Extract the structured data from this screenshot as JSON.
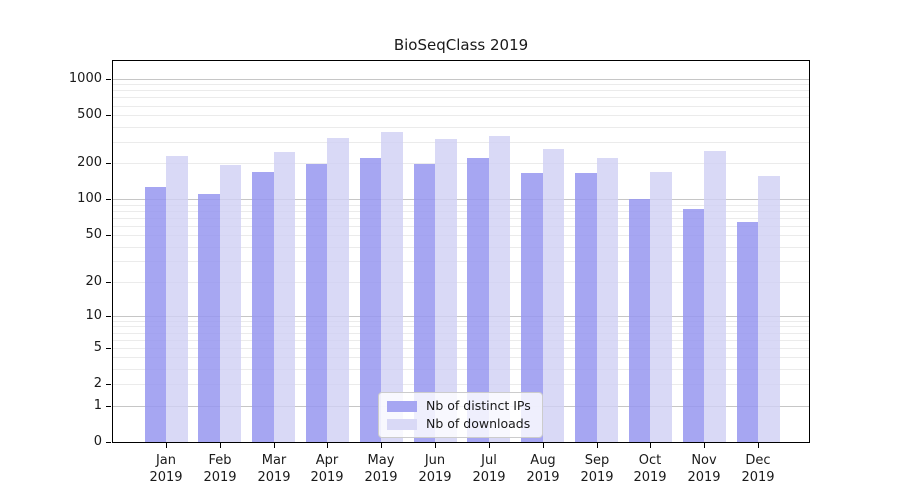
{
  "chart_data": {
    "type": "bar",
    "title": "BioSeqClass 2019",
    "categories": [
      "Jan",
      "Feb",
      "Mar",
      "Apr",
      "May",
      "Jun",
      "Jul",
      "Aug",
      "Sep",
      "Oct",
      "Nov",
      "Dec"
    ],
    "category_year": "2019",
    "series": [
      {
        "name": "Nb of distinct IPs",
        "color": "#a6a6f2",
        "fill": "#9696f0",
        "fill_opacity": 0.85,
        "values": [
          127,
          110,
          168,
          198,
          221,
          198,
          221,
          164,
          164,
          101,
          83,
          65
        ]
      },
      {
        "name": "Nb of downloads",
        "color": "#d9d9f6",
        "fill": "#d0d0f4",
        "fill_opacity": 0.8,
        "values": [
          228,
          192,
          245,
          320,
          362,
          314,
          338,
          260,
          222,
          170,
          252,
          156
        ]
      }
    ],
    "xlabel": "",
    "ylabel": "",
    "yscale": "log1p",
    "yticks": [
      0,
      1,
      2,
      5,
      10,
      20,
      50,
      100,
      200,
      500,
      1000
    ],
    "ylim": [
      0,
      1400
    ],
    "grid": {
      "major_at": [
        1,
        10,
        100,
        1000
      ],
      "major_color": "#c6c6c6",
      "minor_color": "#ebebeb"
    },
    "legend": {
      "position": "lower-center"
    }
  }
}
